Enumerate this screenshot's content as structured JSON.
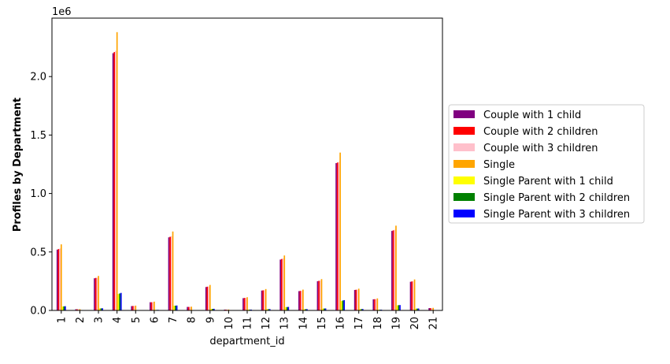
{
  "chart_data": {
    "type": "bar",
    "title": "",
    "xlabel": "department_id",
    "ylabel": "Profiles by Department",
    "y_scale_label": "1e6",
    "ylim": [
      0,
      2500000
    ],
    "yticks": [
      0,
      500000,
      1000000,
      1500000,
      2000000
    ],
    "ytick_labels": [
      "0.0",
      "0.5",
      "1.0",
      "1.5",
      "2.0"
    ],
    "legend_position": "center-right outside",
    "categories": [
      "1",
      "2",
      "3",
      "4",
      "5",
      "6",
      "7",
      "8",
      "9",
      "10",
      "11",
      "12",
      "13",
      "14",
      "15",
      "16",
      "17",
      "18",
      "19",
      "20",
      "21"
    ],
    "series": [
      {
        "name": "Couple with 1 child",
        "color": "#800080",
        "values": [
          520000,
          10000,
          275000,
          2200000,
          37000,
          70000,
          625000,
          30000,
          200000,
          7000,
          105000,
          170000,
          435000,
          165000,
          250000,
          1260000,
          175000,
          95000,
          680000,
          245000,
          20000
        ]
      },
      {
        "name": "Couple with 2 children",
        "color": "#ff0000",
        "values": [
          525000,
          10000,
          278000,
          2210000,
          38000,
          70000,
          630000,
          30000,
          203000,
          7000,
          107000,
          172000,
          440000,
          167000,
          253000,
          1265000,
          177000,
          96000,
          685000,
          248000,
          20000
        ]
      },
      {
        "name": "Couple with 3 children",
        "color": "#ffc0cb",
        "values": [
          530000,
          10000,
          280000,
          2220000,
          38000,
          71000,
          635000,
          30000,
          205000,
          7000,
          108000,
          173000,
          445000,
          168000,
          255000,
          1270000,
          178000,
          97000,
          690000,
          250000,
          20000
        ]
      },
      {
        "name": "Single",
        "color": "#ffa500",
        "values": [
          565000,
          11000,
          295000,
          2380000,
          41000,
          75000,
          675000,
          32000,
          218000,
          8000,
          113000,
          183000,
          470000,
          178000,
          268000,
          1350000,
          186000,
          103000,
          725000,
          265000,
          22000
        ]
      },
      {
        "name": "Single Parent with 1 child",
        "color": "#ffff00",
        "values": [
          33000,
          1000,
          17000,
          140000,
          2500,
          4500,
          40000,
          2000,
          13000,
          500,
          7000,
          11000,
          28000,
          10000,
          16000,
          80000,
          11000,
          6000,
          43000,
          15000,
          1300
        ]
      },
      {
        "name": "Single Parent with 2 children",
        "color": "#008000",
        "values": [
          35000,
          1000,
          18000,
          145000,
          2600,
          4700,
          41000,
          2000,
          13500,
          500,
          7000,
          11000,
          29000,
          11000,
          16500,
          85000,
          11500,
          6200,
          45000,
          16000,
          1300
        ]
      },
      {
        "name": "Single Parent with 3 children",
        "color": "#0000ff",
        "values": [
          36000,
          1000,
          18500,
          150000,
          2700,
          4800,
          42000,
          2100,
          14000,
          500,
          7200,
          11500,
          30000,
          11000,
          17000,
          88000,
          12000,
          6400,
          46000,
          16500,
          1400
        ]
      }
    ]
  }
}
